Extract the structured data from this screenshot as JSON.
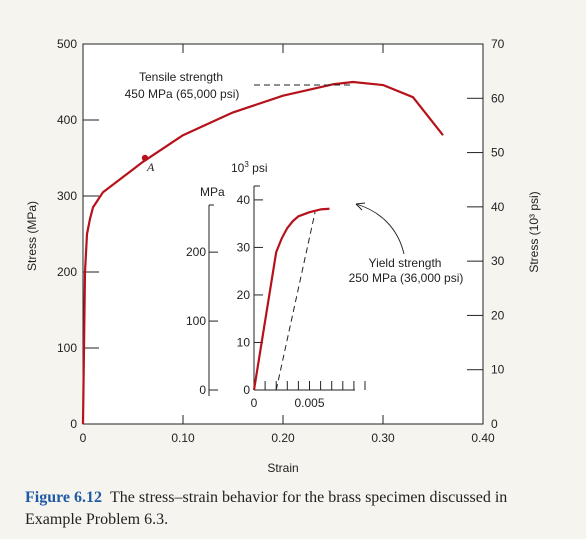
{
  "chart_data": {
    "type": "line",
    "main": {
      "xlabel": "Strain",
      "ylabel_left": "Stress (MPa)",
      "ylabel_right": "Stress (10³ psi)",
      "xlim": [
        0,
        0.4
      ],
      "ylim_left": [
        0,
        500
      ],
      "ylim_right": [
        0,
        70
      ],
      "x_ticks": [
        "0",
        "0.10",
        "0.20",
        "0.30",
        "0.40"
      ],
      "y_ticks_left": [
        "0",
        "100",
        "200",
        "300",
        "400",
        "500"
      ],
      "y_ticks_right": [
        "0",
        "10",
        "20",
        "30",
        "40",
        "50",
        "60",
        "70"
      ],
      "series": [
        {
          "color": "#b5121b",
          "x": [
            0,
            0.002,
            0.004,
            0.007,
            0.01,
            0.02,
            0.04,
            0.06,
            0.1,
            0.15,
            0.2,
            0.25,
            0.27,
            0.3,
            0.33,
            0.36
          ],
          "y": [
            0,
            200,
            250,
            270,
            285,
            305,
            325,
            345,
            380,
            410,
            432,
            447,
            450,
            446,
            430,
            380
          ]
        }
      ],
      "point_A": {
        "x": 0.062,
        "y": 350,
        "label": "A"
      },
      "tensile_annotation": {
        "line1": "Tensile strength",
        "line2": "450 MPa (65,000 psi)",
        "y": 450,
        "x_end": 0.27
      }
    },
    "inset": {
      "unit_left": "MPa",
      "unit_right": "10³ psi",
      "xlim": [
        0,
        0.01
      ],
      "ylim_left": [
        0,
        280
      ],
      "x_ticks": [
        "0",
        "0.005"
      ],
      "y_ticks_left": [
        "0",
        "100",
        "200"
      ],
      "y_ticks_right": [
        "0",
        "10",
        "20",
        "30",
        "40"
      ],
      "series": [
        {
          "color": "#b5121b",
          "x": [
            0,
            0.002,
            0.0025,
            0.003,
            0.0035,
            0.004,
            0.005,
            0.006,
            0.0068
          ],
          "y": [
            0,
            200,
            220,
            235,
            245,
            252,
            258,
            262,
            263
          ]
        }
      ],
      "offset_line": {
        "x": [
          0.002,
          0.0055
        ],
        "y": [
          0,
          258
        ]
      },
      "yield_annotation": {
        "line1": "Yield strength",
        "line2": "250 MPa (36,000 psi)",
        "x": 0.0055,
        "y": 258
      }
    }
  },
  "caption": {
    "label": "Figure 6.12",
    "text": "The stress–strain behavior for the brass specimen discussed in Example Problem 6.3."
  }
}
